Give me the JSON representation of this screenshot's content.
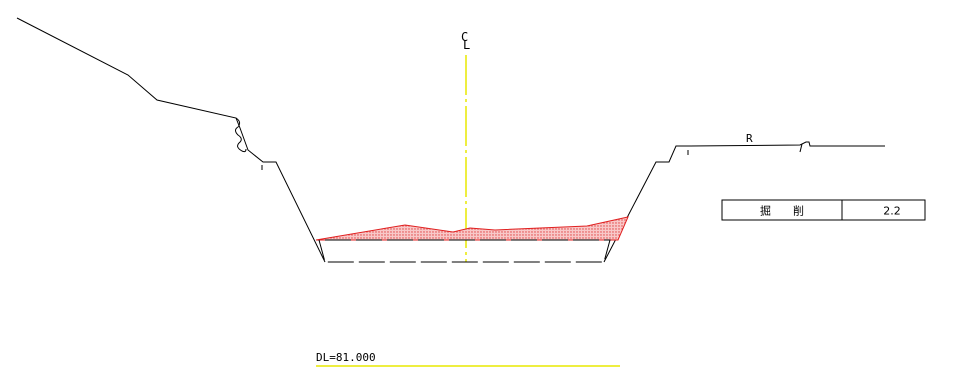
{
  "centerline_label": {
    "c": "C",
    "l": "L"
  },
  "side_label": "R",
  "datum_label": "DL=81.000",
  "quantity_table": {
    "item": "掘　　削",
    "value": "2.2"
  },
  "colors": {
    "line": "#000000",
    "centerline": "#e8e800",
    "excavation_fill": "#f4a0a0",
    "excavation_edge": "#e02020"
  }
}
